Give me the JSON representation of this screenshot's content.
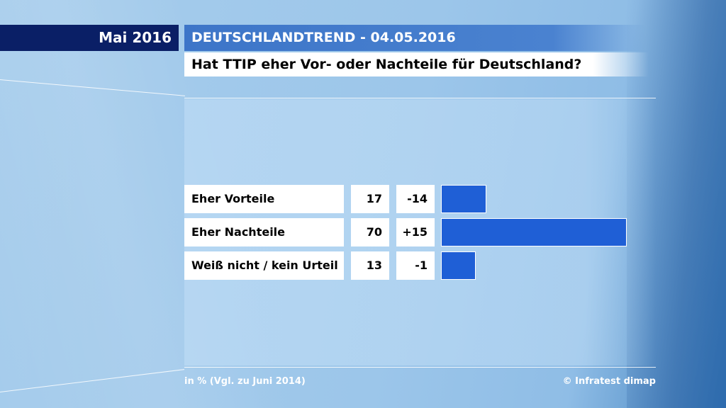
{
  "header": {
    "month": "Mai 2016",
    "title": "DEUTSCHLANDTREND - 04.05.2016",
    "question": "Hat TTIP eher Vor- oder Nachteile für Deutschland?"
  },
  "chart_data": {
    "type": "bar",
    "orientation": "horizontal",
    "title": "Hat TTIP eher Vor- oder Nachteile für Deutschland?",
    "categories": [
      "Eher Vorteile",
      "Eher Nachteile",
      "Weiß nicht / kein Urteil"
    ],
    "values": [
      17,
      70,
      13
    ],
    "changes": [
      "-14",
      "+15",
      "-1"
    ],
    "xlim": [
      0,
      70
    ],
    "unit": "in %",
    "bar_color": "#1f5fd6"
  },
  "footer": {
    "note": "in % (Vgl. zu Juni 2014)",
    "copyright": "© Infratest dimap"
  }
}
